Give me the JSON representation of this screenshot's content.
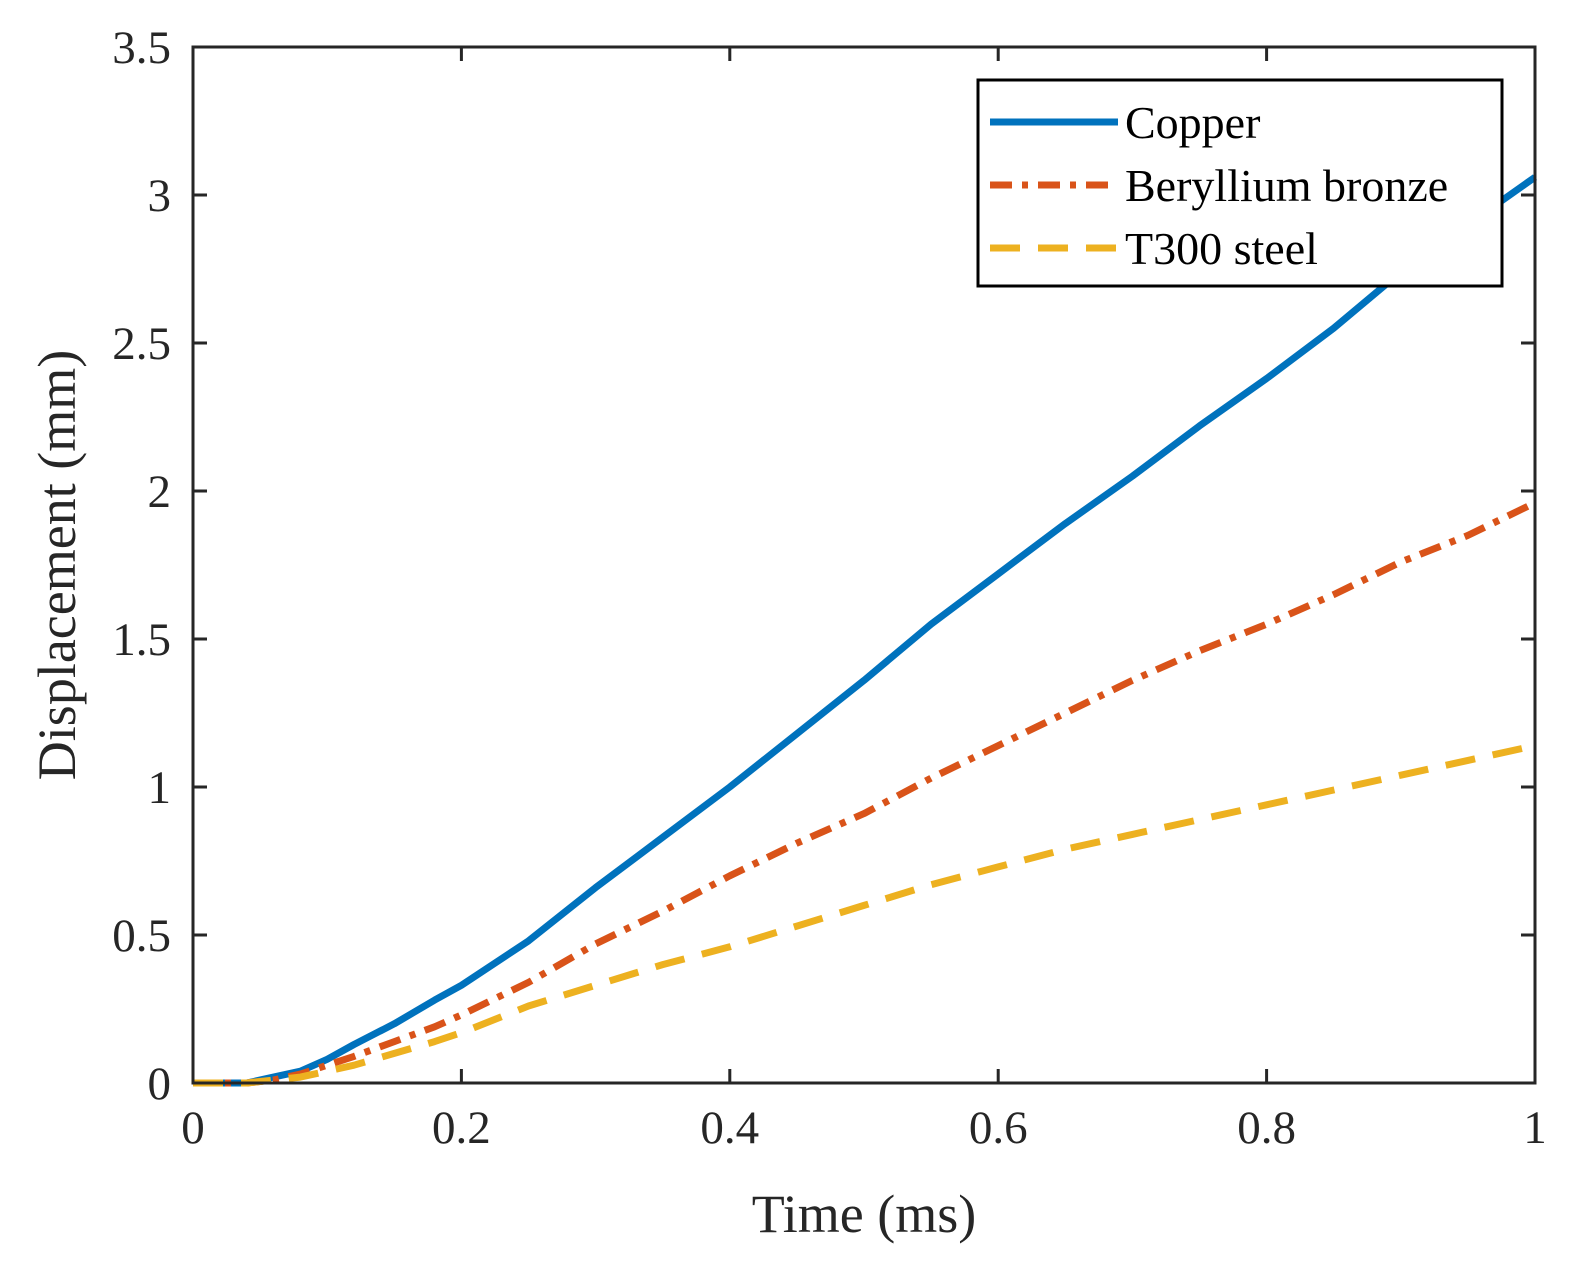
{
  "chart_data": {
    "type": "line",
    "title": "",
    "xlabel": "Time (ms)",
    "ylabel": "Displacement (mm)",
    "xlim": [
      0,
      1
    ],
    "ylim": [
      0,
      3.5
    ],
    "xticks": [
      "0",
      "0.2",
      "0.4",
      "0.6",
      "0.8",
      "1"
    ],
    "yticks": [
      "0",
      "0.5",
      "1",
      "1.5",
      "2",
      "2.5",
      "3",
      "3.5"
    ],
    "grid": false,
    "legend_position": "top-right",
    "series": [
      {
        "name": "Copper",
        "color": "#0072BD",
        "line_style": "solid",
        "x": [
          0,
          0.02,
          0.04,
          0.06,
          0.08,
          0.1,
          0.12,
          0.15,
          0.18,
          0.2,
          0.25,
          0.3,
          0.35,
          0.4,
          0.45,
          0.5,
          0.55,
          0.6,
          0.65,
          0.7,
          0.75,
          0.8,
          0.85,
          0.9,
          0.95,
          1.0
        ],
        "y": [
          0,
          0,
          0,
          0.02,
          0.04,
          0.08,
          0.13,
          0.2,
          0.28,
          0.33,
          0.48,
          0.66,
          0.83,
          1.0,
          1.18,
          1.36,
          1.55,
          1.72,
          1.89,
          2.05,
          2.22,
          2.38,
          2.55,
          2.74,
          2.9,
          3.06
        ]
      },
      {
        "name": "Beryllium bronze",
        "color": "#D95319",
        "line_style": "dashdot",
        "x": [
          0,
          0.02,
          0.04,
          0.06,
          0.08,
          0.1,
          0.12,
          0.15,
          0.18,
          0.2,
          0.25,
          0.3,
          0.35,
          0.4,
          0.45,
          0.5,
          0.55,
          0.6,
          0.65,
          0.7,
          0.75,
          0.8,
          0.85,
          0.9,
          0.95,
          1.0
        ],
        "y": [
          0,
          0,
          0,
          0.01,
          0.03,
          0.06,
          0.09,
          0.14,
          0.19,
          0.23,
          0.34,
          0.47,
          0.58,
          0.7,
          0.81,
          0.91,
          1.03,
          1.14,
          1.25,
          1.36,
          1.46,
          1.55,
          1.65,
          1.76,
          1.85,
          1.96
        ]
      },
      {
        "name": "T300 steel",
        "color": "#EDB120",
        "line_style": "dashed",
        "x": [
          0,
          0.02,
          0.04,
          0.06,
          0.08,
          0.1,
          0.12,
          0.15,
          0.18,
          0.2,
          0.25,
          0.3,
          0.35,
          0.4,
          0.45,
          0.5,
          0.55,
          0.6,
          0.65,
          0.7,
          0.75,
          0.8,
          0.85,
          0.9,
          0.95,
          1.0
        ],
        "y": [
          0,
          0,
          0,
          0.01,
          0.02,
          0.04,
          0.06,
          0.1,
          0.14,
          0.17,
          0.26,
          0.33,
          0.4,
          0.46,
          0.53,
          0.6,
          0.67,
          0.73,
          0.79,
          0.84,
          0.89,
          0.94,
          0.99,
          1.04,
          1.09,
          1.14
        ]
      }
    ]
  }
}
